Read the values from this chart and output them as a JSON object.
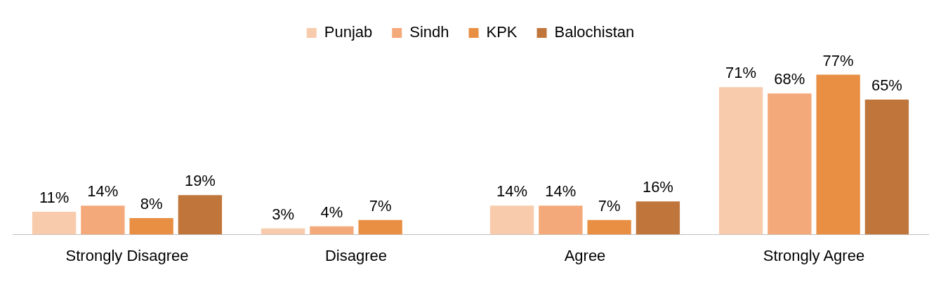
{
  "chart_data": {
    "type": "bar",
    "categories": [
      "Strongly Disagree",
      "Disagree",
      "Agree",
      "Strongly Agree"
    ],
    "series": [
      {
        "name": "Punjab",
        "color": "#f8cbad",
        "values": [
          11,
          3,
          14,
          71
        ],
        "value_labels": [
          "11%",
          "3%",
          "14%",
          "71%"
        ]
      },
      {
        "name": "Sindh",
        "color": "#f4a97a",
        "values": [
          14,
          4,
          14,
          68
        ],
        "value_labels": [
          "14%",
          "4%",
          "14%",
          "68%"
        ]
      },
      {
        "name": "KPK",
        "color": "#e88f43",
        "values": [
          8,
          7,
          7,
          77
        ],
        "value_labels": [
          "8%",
          "7%",
          "7%",
          "77%"
        ]
      },
      {
        "name": "Balochistan",
        "color": "#c0753a",
        "values": [
          19,
          null,
          16,
          65
        ],
        "value_labels": [
          "19%",
          null,
          "16%",
          "65%"
        ]
      }
    ],
    "legend": "top",
    "grid": false
  }
}
